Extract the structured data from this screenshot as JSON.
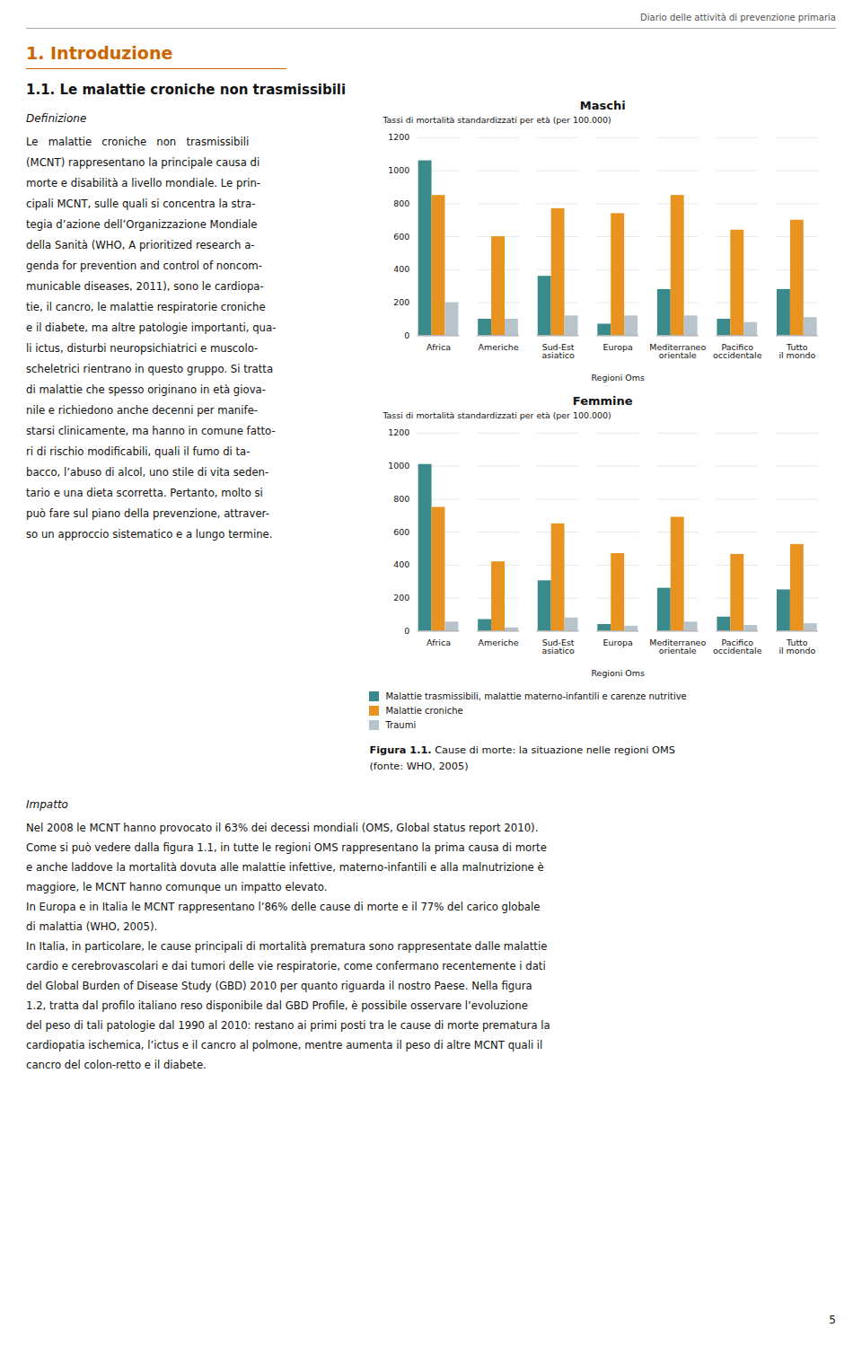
{
  "chart_data": [
    {
      "type": "bar",
      "title": "Maschi",
      "categories": [
        "Africa",
        "Americhe",
        "Sud-Est\nasiatico",
        "Europa",
        "Mediterraneo\norientale",
        "Pacifico\noccidentale",
        "Tutto\nil mondo"
      ],
      "xlabel": "Regioni Oms",
      "ylabel": "Tassi di mortalità standardizzati per età (per 100.000)",
      "ylim": [
        0,
        1200
      ],
      "yticks": [
        0,
        200,
        400,
        600,
        800,
        1000,
        1200
      ],
      "grid": true,
      "series": [
        {
          "name": "Malattie trasmissibili, malattie materno-infantili e carenze nutritive",
          "color": "#3a8a8c",
          "values": [
            1060,
            100,
            360,
            70,
            280,
            100,
            280
          ]
        },
        {
          "name": "Malattie croniche",
          "color": "#e8931f",
          "values": [
            850,
            600,
            770,
            740,
            850,
            640,
            700
          ]
        },
        {
          "name": "Traumi",
          "color": "#b8c4cc",
          "values": [
            200,
            100,
            120,
            120,
            120,
            80,
            110
          ]
        }
      ]
    },
    {
      "type": "bar",
      "title": "Femmine",
      "categories": [
        "Africa",
        "Americhe",
        "Sud-Est\nasiatico",
        "Europa",
        "Mediterraneo\norientale",
        "Pacifico\noccidentale",
        "Tutto\nil mondo"
      ],
      "xlabel": "Regioni Oms",
      "ylabel": "Tassi di mortalità standardizzati per età (per 100.000)",
      "ylim": [
        0,
        1200
      ],
      "yticks": [
        0,
        200,
        400,
        600,
        800,
        1000,
        1200
      ],
      "grid": true,
      "legend": "bottom",
      "series": [
        {
          "name": "Malattie trasmissibili, malattie materno-infantili e carenze nutritive",
          "color": "#3a8a8c",
          "values": [
            1010,
            70,
            305,
            40,
            260,
            85,
            250
          ]
        },
        {
          "name": "Malattie croniche",
          "color": "#e8931f",
          "values": [
            750,
            420,
            650,
            470,
            690,
            465,
            525
          ]
        },
        {
          "name": "Traumi",
          "color": "#b8c4cc",
          "values": [
            55,
            20,
            80,
            30,
            55,
            35,
            45
          ]
        }
      ]
    }
  ],
  "annotations": {
    "header": "Diario delle attività di prevenzione primaria",
    "section": "1. Introduzione",
    "subsection": "1.1. Le malattie croniche non trasmissibili",
    "left_heading": "Definizione",
    "left_column": [
      "Le   malattie   croniche   non   trasmissibili",
      "(MCNT) rappresentano la principale causa di",
      "morte e disabilità a livello mondiale. Le prin-",
      "cipali MCNT, sulle quali si concentra la stra-",
      "tegia d’azione dell’Organizzazione Mondiale",
      "della Sanità (WHO, A prioritized research a-",
      "genda for prevention and control of noncom-",
      "municable diseases, 2011), sono le cardiopa-",
      "tie, il cancro, le malattie respiratorie croniche",
      "e il diabete, ma altre patologie importanti, qua-",
      "li ictus, disturbi neuropsichiatrici e muscolo-",
      "scheletrici rientrano in questo gruppo. Si tratta",
      "di malattie che spesso originano in età giova-",
      "nile e richiedono anche decenni per manife-",
      "starsi clinicamente, ma hanno in comune fatto-",
      "ri di rischio modificabili, quali il fumo di ta-",
      "bacco, l’abuso di alcol, uno stile di vita seden-",
      "tario e una dieta scorretta. Pertanto, molto si",
      "può fare sul piano della prevenzione, attraver-",
      "so un approccio sistematico e a lungo termine."
    ],
    "caption": [
      [
        "Figura 1.1.",
        " Cause di morte: la situazione nelle regioni OMS"
      ],
      [
        "(fonte: WHO, 2005)"
      ]
    ],
    "full_heading": "Impatto",
    "full_width": [
      "Nel 2008 le MCNT hanno provocato il 63% dei decessi mondiali (OMS, Global status report 2010).",
      "Come si può vedere dalla figura 1.1, in tutte le regioni OMS rappresentano la prima causa di morte",
      "e anche laddove la mortalità dovuta alle malattie infettive, materno-infantili e alla malnutrizione è",
      "maggiore, le MCNT hanno comunque un impatto elevato.",
      "In Europa e in Italia le MCNT rappresentano l’86% delle cause di morte e il 77% del carico globale",
      "di malattia (WHO, 2005).",
      "In Italia, in particolare, le cause principali di mortalità prematura sono rappresentate dalle malattie",
      "cardio e cerebrovascolari e dai tumori delle vie respiratorie, come confermano recentemente i dati",
      "del Global Burden of Disease Study (GBD) 2010 per quanto riguarda il nostro Paese. Nella figura",
      "1.2, tratta dal profilo italiano reso disponibile dal GBD Profile, è possibile osservare l’evoluzione",
      "del peso di tali patologie dal 1990 al 2010: restano ai primi posti tra le cause di morte prematura la",
      "cardiopatia ischemica, l’ictus e il cancro al polmone, mentre aumenta il peso di altre MCNT quali il",
      "cancro del colon-retto e il diabete."
    ],
    "page_number": "5"
  }
}
